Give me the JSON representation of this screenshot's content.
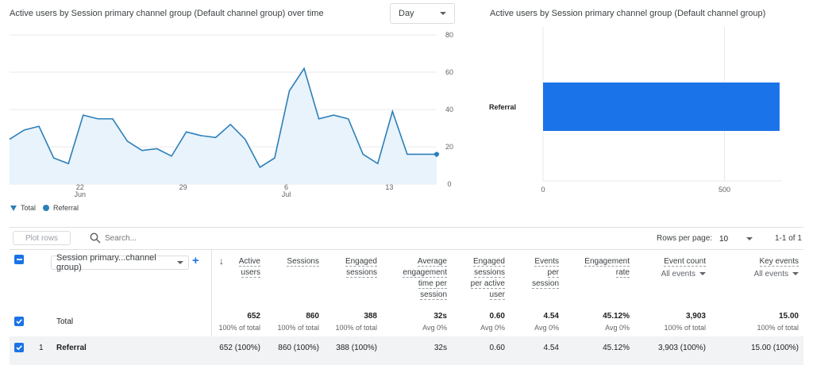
{
  "line_chart": {
    "title": "Active users by Session primary channel group (Default channel group) over time",
    "granularity": "Day",
    "y_ticks": [
      "80",
      "60",
      "40",
      "20",
      "0"
    ],
    "x_ticks": [
      {
        "day": "22",
        "month": "Jun"
      },
      {
        "day": "29",
        "month": ""
      },
      {
        "day": "6",
        "month": "Jul"
      },
      {
        "day": "13",
        "month": ""
      }
    ],
    "legend": [
      "Total",
      "Referral"
    ]
  },
  "bar_chart": {
    "title": "Active users by Session primary channel group (Default channel group)",
    "category": "Referral",
    "x_ticks": [
      "0",
      "500"
    ]
  },
  "chart_data": [
    {
      "type": "area",
      "title": "Active users by Session primary channel group (Default channel group) over time",
      "x": [
        0,
        1,
        2,
        3,
        4,
        5,
        6,
        7,
        8,
        9,
        10,
        11,
        12,
        13,
        14,
        15,
        16,
        17,
        18,
        19,
        20,
        21,
        22,
        23,
        24,
        25,
        26,
        27,
        28,
        29
      ],
      "series": [
        {
          "name": "Referral",
          "values": [
            24,
            29,
            31,
            14,
            11,
            37,
            35,
            35,
            23,
            18,
            19,
            15,
            28,
            26,
            25,
            32,
            24,
            9,
            14,
            50,
            62,
            35,
            37,
            35,
            16,
            11,
            39,
            16,
            16,
            16
          ]
        }
      ],
      "ylim": [
        0,
        80
      ]
    },
    {
      "type": "bar",
      "title": "Active users by Session primary channel group (Default channel group)",
      "categories": [
        "Referral"
      ],
      "values": [
        652
      ],
      "xlim": [
        0,
        650
      ]
    }
  ],
  "toolbar": {
    "plot_rows": "Plot rows",
    "search_placeholder": "Search...",
    "rows_per_page_label": "Rows per page:",
    "rows_per_page": "10",
    "pagination": "1-1 of 1"
  },
  "table": {
    "dimension": "Session primary...channel group)",
    "add": "+",
    "sort_arrow": "↓",
    "columns": [
      {
        "label": [
          "Active",
          "users"
        ]
      },
      {
        "label": [
          "Sessions"
        ]
      },
      {
        "label": [
          "Engaged",
          "sessions"
        ]
      },
      {
        "label": [
          "Average",
          "engagement",
          "time per",
          "session"
        ]
      },
      {
        "label": [
          "Engaged",
          "sessions",
          "per active",
          "user"
        ]
      },
      {
        "label": [
          "Events",
          "per",
          "session"
        ]
      },
      {
        "label": [
          "Engagement",
          "rate"
        ]
      },
      {
        "label": [
          "Event count"
        ],
        "sub": "All events"
      },
      {
        "label": [
          "Key events"
        ],
        "sub": "All events"
      }
    ],
    "total": {
      "label": "Total",
      "values": [
        "652",
        "860",
        "388",
        "32s",
        "0.60",
        "4.54",
        "45.12%",
        "3,903",
        "15.00"
      ],
      "subs": [
        "100% of total",
        "100% of total",
        "100% of total",
        "Avg 0%",
        "Avg 0%",
        "Avg 0%",
        "Avg 0%",
        "100% of total",
        "100% of total"
      ]
    },
    "rows": [
      {
        "index": "1",
        "label": "Referral",
        "values": [
          "652 (100%)",
          "860 (100%)",
          "388 (100%)",
          "32s",
          "0.60",
          "4.54",
          "45.12%",
          "3,903 (100%)",
          "15.00 (100%)"
        ]
      }
    ]
  },
  "colors": {
    "accent": "#1a73e8",
    "line": "#2d7fb8",
    "area": "#e8f3fc"
  }
}
